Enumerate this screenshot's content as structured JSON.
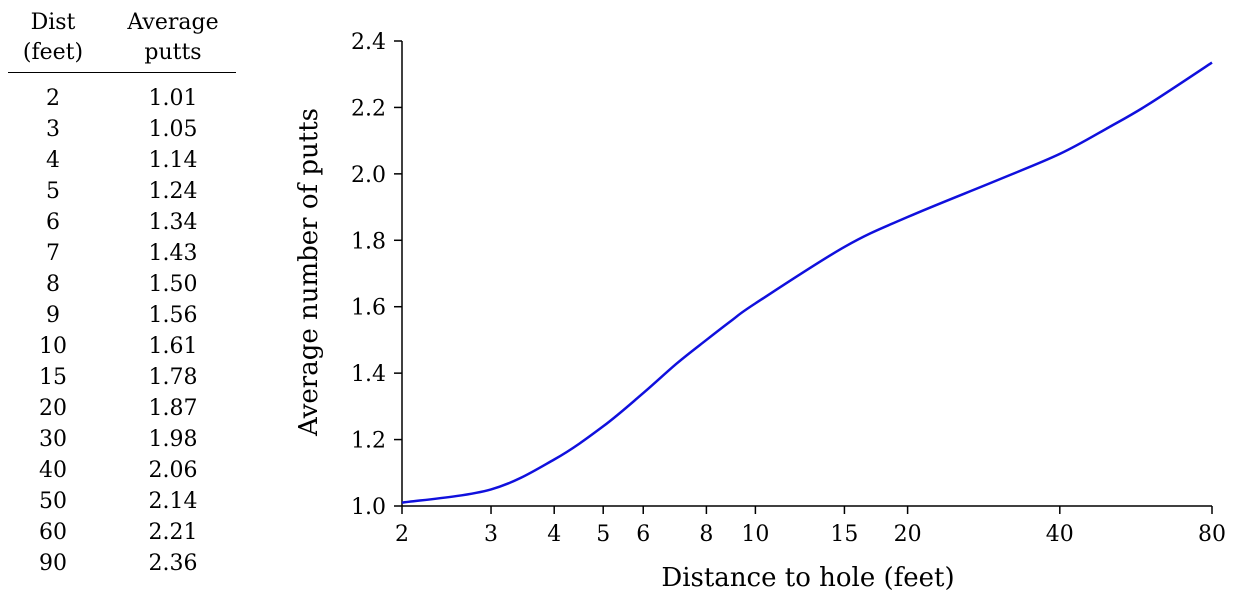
{
  "table": {
    "headers": {
      "dist": [
        "Dist",
        "(feet)"
      ],
      "avg": [
        "Average",
        "putts"
      ]
    },
    "rows": [
      [
        "2",
        "1.01"
      ],
      [
        "3",
        "1.05"
      ],
      [
        "4",
        "1.14"
      ],
      [
        "5",
        "1.24"
      ],
      [
        "6",
        "1.34"
      ],
      [
        "7",
        "1.43"
      ],
      [
        "8",
        "1.50"
      ],
      [
        "9",
        "1.56"
      ],
      [
        "10",
        "1.61"
      ],
      [
        "15",
        "1.78"
      ],
      [
        "20",
        "1.87"
      ],
      [
        "30",
        "1.98"
      ],
      [
        "40",
        "2.06"
      ],
      [
        "50",
        "2.14"
      ],
      [
        "60",
        "2.21"
      ],
      [
        "90",
        "2.36"
      ]
    ]
  },
  "chart_data": {
    "type": "line",
    "title": "",
    "xlabel": "Distance to hole (feet)",
    "ylabel": "Average number of putts",
    "x_scale": "log",
    "xlim": [
      2,
      80
    ],
    "ylim": [
      1.0,
      2.4
    ],
    "x_ticks": [
      2,
      3,
      4,
      5,
      6,
      8,
      10,
      15,
      20,
      40,
      80
    ],
    "x_tick_labels": [
      "2",
      "3",
      "4",
      "5",
      "6",
      "8",
      "10",
      "15",
      "20",
      "40",
      "80"
    ],
    "y_ticks": [
      1.0,
      1.2,
      1.4,
      1.6,
      1.8,
      2.0,
      2.2,
      2.4
    ],
    "y_tick_labels": [
      "1.0",
      "1.2",
      "1.4",
      "1.6",
      "1.8",
      "2.0",
      "2.2",
      "2.4"
    ],
    "grid": false,
    "series": [
      {
        "color": "#1010dd",
        "x": [
          2,
          3,
          4,
          5,
          6,
          7,
          8,
          9,
          10,
          15,
          20,
          30,
          40,
          50,
          60,
          80
        ],
        "y": [
          1.01,
          1.05,
          1.14,
          1.24,
          1.34,
          1.43,
          1.5,
          1.56,
          1.61,
          1.78,
          1.87,
          1.98,
          2.06,
          2.14,
          2.21,
          2.335
        ]
      }
    ]
  }
}
